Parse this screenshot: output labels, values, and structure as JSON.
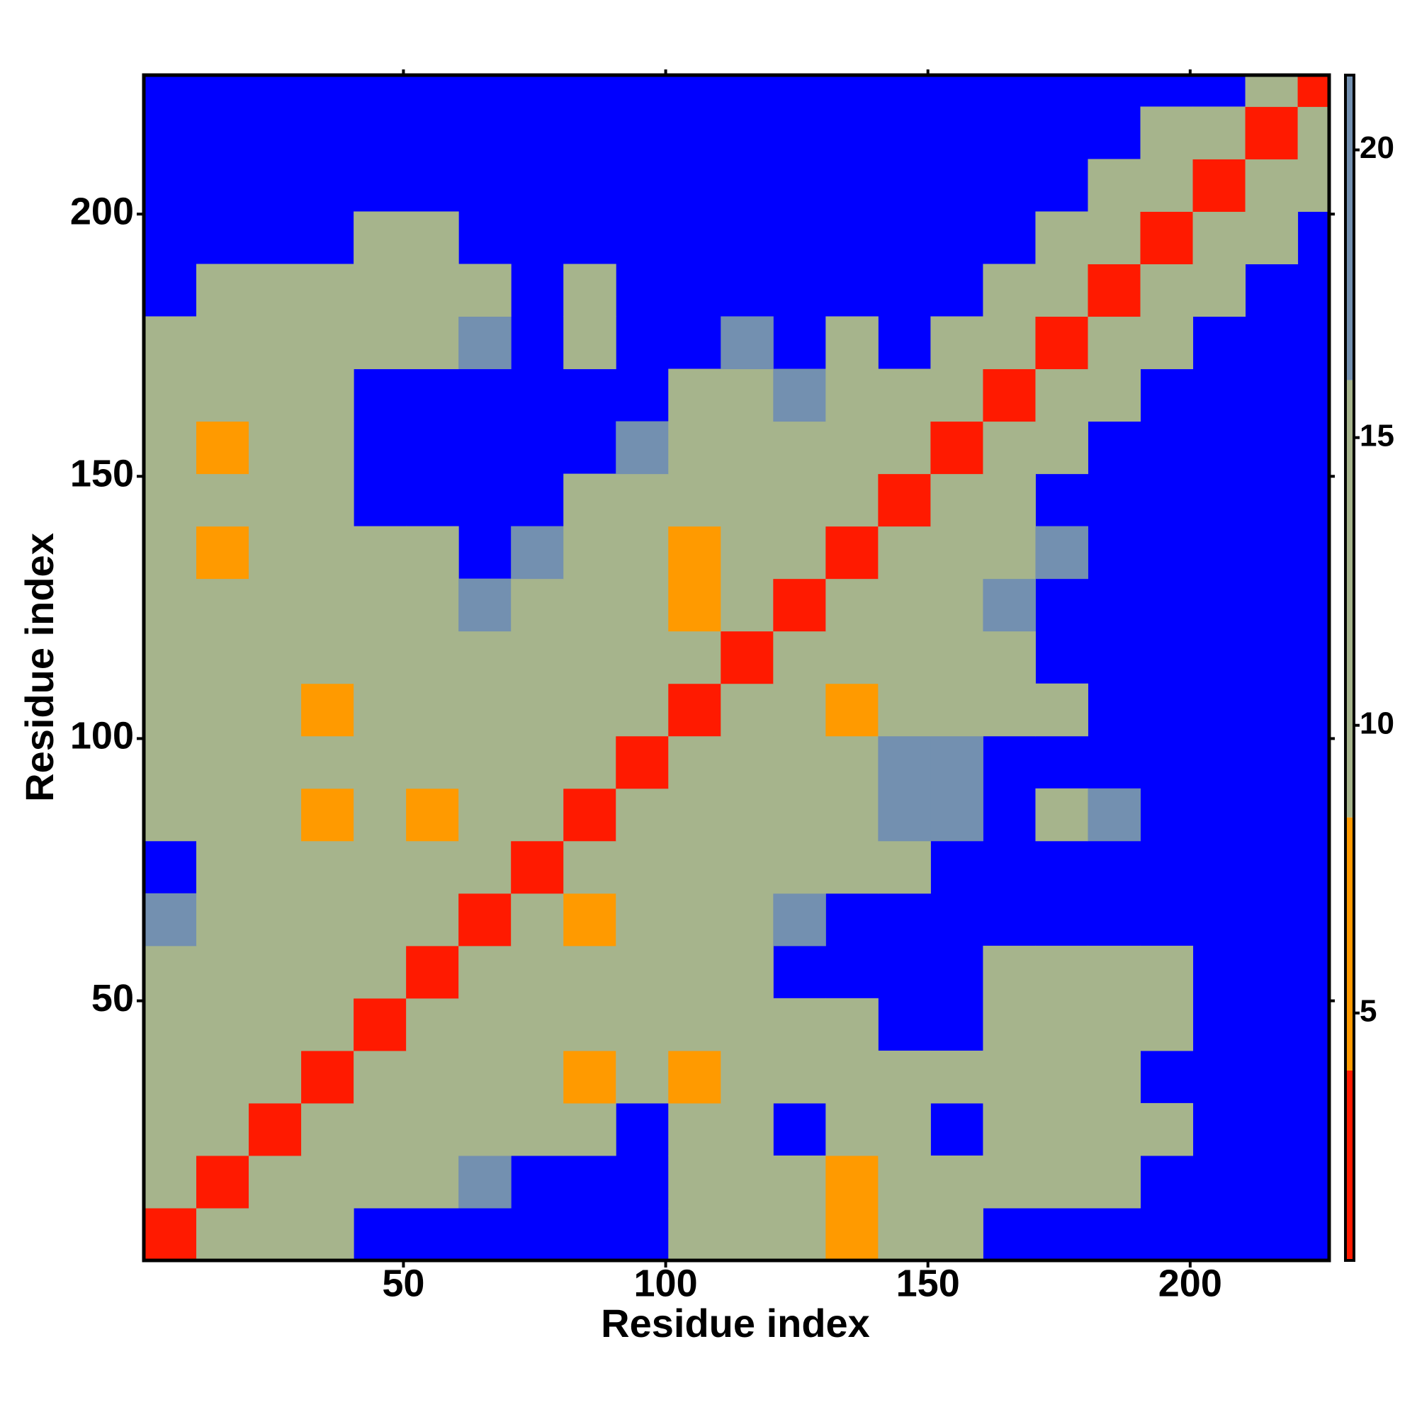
{
  "chart_data": {
    "type": "heatmap",
    "x_label": "Residue index",
    "y_label": "Residue index",
    "xlim": [
      0.5,
      226.5
    ],
    "ylim": [
      0.5,
      226.5
    ],
    "xticks": [
      50,
      100,
      150,
      200
    ],
    "yticks": [
      50,
      100,
      150,
      200
    ],
    "x_edges": [
      0.5,
      10.5,
      20.5,
      30.5,
      40.5,
      50.5,
      60.5,
      70.5,
      80.5,
      90.5,
      100.5,
      110.5,
      120.5,
      130.5,
      140.5,
      150.5,
      160.5,
      170.5,
      180.5,
      190.5,
      200.5,
      210.5,
      220.5,
      226.5
    ],
    "y_edges": [
      0.5,
      10.5,
      20.5,
      30.5,
      40.5,
      50.5,
      60.5,
      70.5,
      80.5,
      90.5,
      100.5,
      110.5,
      120.5,
      130.5,
      140.5,
      150.5,
      160.5,
      170.5,
      180.5,
      190.5,
      200.5,
      210.5,
      220.5,
      226.5
    ],
    "z": [
      [
        3,
        10,
        13,
        14,
        null,
        null,
        null,
        null,
        null,
        null,
        14,
        12,
        12,
        8,
        12,
        11,
        null,
        null,
        null,
        null,
        null,
        null,
        null
      ],
      [
        10,
        3,
        10,
        12,
        13,
        14,
        16,
        null,
        null,
        null,
        13,
        12,
        12,
        7,
        12,
        10,
        13,
        14,
        15,
        null,
        null,
        null,
        null
      ],
      [
        12,
        10,
        3,
        9,
        11,
        11,
        13,
        15,
        14,
        null,
        13,
        14,
        null,
        12,
        14,
        null,
        12,
        10,
        12,
        15,
        null,
        null,
        null
      ],
      [
        12,
        12,
        9,
        3,
        9,
        11,
        12,
        13,
        8,
        12,
        8,
        13,
        12,
        12,
        14,
        15,
        13,
        13,
        14,
        null,
        null,
        null,
        null
      ],
      [
        14,
        12,
        12,
        9,
        3,
        9,
        11,
        12,
        11,
        12,
        12,
        12,
        14,
        15,
        null,
        null,
        15,
        11,
        11,
        14,
        null,
        null,
        null
      ],
      [
        15,
        12,
        11,
        12,
        9,
        3,
        9,
        11,
        10,
        12,
        13,
        15,
        null,
        null,
        null,
        null,
        14,
        11,
        12,
        15,
        null,
        null,
        null
      ],
      [
        16,
        13,
        12,
        11,
        11,
        9,
        3,
        9,
        8,
        12,
        12,
        13,
        16,
        null,
        null,
        null,
        null,
        null,
        null,
        null,
        null,
        null,
        null
      ],
      [
        null,
        15,
        13,
        12,
        12,
        11,
        9,
        3,
        9,
        11,
        11,
        12,
        13,
        15,
        15,
        null,
        null,
        null,
        null,
        null,
        null,
        null,
        null
      ],
      [
        14,
        12,
        12,
        8,
        11,
        8,
        11,
        9,
        3,
        9,
        11,
        12,
        13,
        14,
        16,
        16,
        null,
        15,
        16,
        null,
        null,
        null,
        null
      ],
      [
        13,
        12,
        12,
        11,
        12,
        12,
        11,
        11,
        9,
        3,
        9,
        11,
        12,
        13,
        16,
        16,
        null,
        null,
        null,
        null,
        null,
        null,
        null
      ],
      [
        12,
        11,
        10,
        8,
        11,
        13,
        15,
        13,
        12,
        9,
        3,
        9,
        10,
        8,
        12,
        13,
        14,
        15,
        null,
        null,
        null,
        null,
        null
      ],
      [
        11,
        12,
        13,
        13,
        14,
        14,
        15,
        13,
        12,
        11,
        9,
        3,
        9,
        11,
        12,
        11,
        14,
        null,
        null,
        null,
        null,
        null,
        null
      ],
      [
        9,
        10,
        12,
        12,
        13,
        14,
        16,
        14,
        12,
        11,
        8,
        9,
        3,
        10,
        14,
        13,
        16,
        null,
        null,
        null,
        null,
        null,
        null
      ],
      [
        10,
        8,
        11,
        11,
        14,
        15,
        null,
        16,
        13,
        12,
        8,
        12,
        10,
        3,
        9,
        11,
        13,
        16,
        null,
        null,
        null,
        null,
        null
      ],
      [
        11,
        12,
        13,
        14,
        null,
        null,
        null,
        null,
        14,
        13,
        12,
        11,
        13,
        9,
        3,
        9,
        13,
        null,
        null,
        null,
        null,
        null,
        null
      ],
      [
        9,
        8,
        13,
        15,
        null,
        null,
        null,
        null,
        null,
        16,
        12,
        11,
        13,
        11,
        9,
        3,
        9,
        15,
        null,
        null,
        null,
        null,
        null
      ],
      [
        14,
        11,
        12,
        14,
        null,
        null,
        null,
        null,
        null,
        null,
        14,
        15,
        16,
        13,
        13,
        9,
        3,
        9,
        13,
        null,
        null,
        null,
        null
      ],
      [
        15,
        11,
        10,
        13,
        12,
        10,
        16,
        null,
        15,
        null,
        null,
        16,
        null,
        15,
        null,
        14,
        9,
        3,
        9,
        12,
        null,
        null,
        null
      ],
      [
        null,
        13,
        12,
        14,
        11,
        9,
        14,
        null,
        15,
        null,
        null,
        null,
        null,
        null,
        null,
        null,
        13,
        9,
        3,
        9,
        12,
        null,
        null
      ],
      [
        null,
        null,
        null,
        null,
        14,
        15,
        null,
        null,
        null,
        null,
        null,
        null,
        null,
        null,
        null,
        null,
        null,
        12,
        9,
        3,
        9,
        12,
        null
      ],
      [
        null,
        null,
        null,
        null,
        null,
        null,
        null,
        null,
        null,
        null,
        null,
        null,
        null,
        null,
        null,
        null,
        null,
        null,
        13,
        9,
        3,
        9,
        12
      ],
      [
        null,
        null,
        null,
        null,
        null,
        null,
        null,
        null,
        null,
        null,
        null,
        null,
        null,
        null,
        null,
        null,
        null,
        null,
        null,
        12,
        9,
        3,
        9
      ],
      [
        null,
        null,
        null,
        null,
        null,
        null,
        null,
        null,
        null,
        null,
        null,
        null,
        null,
        null,
        null,
        null,
        null,
        null,
        null,
        null,
        null,
        9,
        3
      ]
    ],
    "background": "#0000ff",
    "colorbar": {
      "lim": [
        0.7,
        21.3
      ],
      "ticks": [
        5,
        10,
        15,
        20
      ],
      "levels": [
        4,
        8.4,
        16
      ],
      "colors": [
        "#ff1a00",
        "#ff9a00",
        "#a6b48c",
        "#7390b0"
      ]
    }
  }
}
